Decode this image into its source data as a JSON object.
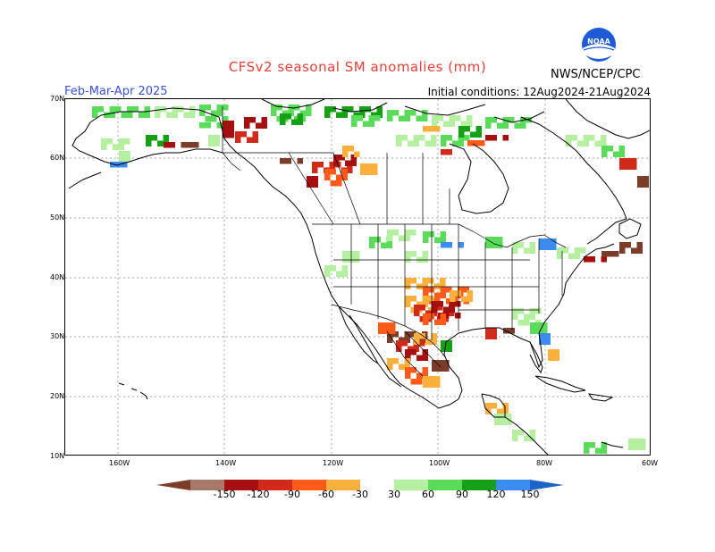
{
  "title": "CFSv2 seasonal SM anomalies (mm)",
  "season": "Feb-Mar-Apr 2025",
  "initial_conditions": "Initial conditions: 12Aug2024-21Aug2024",
  "agency": "NWS/NCEP/CPC",
  "logo_text": "NOAA",
  "lat_labels": [
    "70N",
    "60N",
    "50N",
    "40N",
    "30N",
    "20N",
    "10N"
  ],
  "lon_labels": [
    "160W",
    "140W",
    "120W",
    "100W",
    "80W",
    "60W"
  ],
  "colorbar": {
    "labels": [
      "-150",
      "-120",
      "-90",
      "-60",
      "-30",
      "30",
      "60",
      "90",
      "120",
      "150"
    ],
    "colors": [
      "#7b3c2a",
      "#a8786a",
      "#a50f0f",
      "#d12a1a",
      "#ff5a1a",
      "#fbb03b",
      "#ffffff",
      "#b4f0a0",
      "#5adc5a",
      "#16a016",
      "#3c8cf0",
      "#1e64c8"
    ]
  },
  "grid": {
    "lat_lines": true,
    "lon_lines": true
  }
}
